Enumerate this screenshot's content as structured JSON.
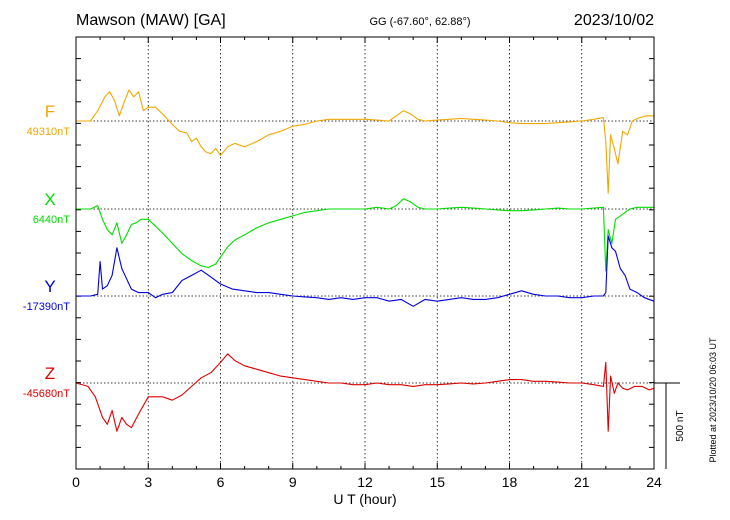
{
  "header": {
    "station": "Mawson (MAW)  [GA]",
    "coords": "GG (-67.60°,  62.88°)",
    "date": "2023/10/02"
  },
  "footer": {
    "plotted_at": "Plotted at 2023/10/20 06:03 UT"
  },
  "chart_data": {
    "type": "line",
    "xlabel": "U T (hour)",
    "xlim": [
      0,
      24
    ],
    "xticks": [
      "0",
      "3",
      "6",
      "9",
      "12",
      "15",
      "18",
      "21",
      "24"
    ],
    "grid": true,
    "scale_bar": {
      "label": "500 nT",
      "value_nT": 500
    },
    "series": [
      {
        "name": "F",
        "baseline_label": "49310nT",
        "color": "#f0a800",
        "x": [
          0,
          0.6,
          0.9,
          1.2,
          1.4,
          1.6,
          1.8,
          2.0,
          2.2,
          2.4,
          2.6,
          2.8,
          3.0,
          3.3,
          3.6,
          4.0,
          4.3,
          4.6,
          4.8,
          5.0,
          5.2,
          5.4,
          5.6,
          5.8,
          6.0,
          6.3,
          6.6,
          7.0,
          7.5,
          8.0,
          8.5,
          9.0,
          9.5,
          10,
          10.5,
          11,
          11.5,
          12,
          12.5,
          13,
          13.3,
          13.6,
          13.9,
          14.2,
          14.5,
          15,
          15.5,
          16,
          16.5,
          17,
          17.5,
          18,
          18.5,
          19,
          19.5,
          20,
          20.5,
          21,
          21.5,
          21.9,
          22.0,
          22.1,
          22.2,
          22.35,
          22.5,
          22.7,
          22.9,
          23.1,
          23.4,
          23.7,
          24
        ],
        "y": [
          0,
          0,
          60,
          140,
          170,
          120,
          30,
          110,
          180,
          140,
          170,
          60,
          80,
          80,
          40,
          -20,
          -60,
          -70,
          -120,
          -100,
          -150,
          -180,
          -190,
          -160,
          -200,
          -150,
          -130,
          -150,
          -120,
          -80,
          -60,
          -30,
          -20,
          0,
          10,
          10,
          10,
          10,
          5,
          0,
          30,
          60,
          40,
          10,
          0,
          5,
          10,
          15,
          10,
          5,
          0,
          -10,
          -15,
          -15,
          -15,
          -10,
          -5,
          0,
          10,
          20,
          -120,
          -420,
          -80,
          -160,
          -250,
          -60,
          -80,
          0,
          20,
          30,
          30
        ]
      },
      {
        "name": "X",
        "baseline_label": "6440nT",
        "color": "#00dd00",
        "x": [
          0,
          0.6,
          0.9,
          1.1,
          1.3,
          1.5,
          1.7,
          1.9,
          2.1,
          2.3,
          2.5,
          2.7,
          3.0,
          3.3,
          3.6,
          4.0,
          4.4,
          4.8,
          5.2,
          5.5,
          5.8,
          6.0,
          6.3,
          6.6,
          7.0,
          7.5,
          8.0,
          8.5,
          9.0,
          9.5,
          10,
          10.5,
          11,
          11.5,
          12,
          12.5,
          13,
          13.3,
          13.6,
          13.9,
          14.2,
          14.5,
          15,
          15.5,
          16,
          16.5,
          17,
          17.5,
          18,
          18.5,
          19,
          19.5,
          20,
          20.5,
          21,
          21.5,
          21.9,
          22.0,
          22.1,
          22.25,
          22.4,
          22.6,
          22.8,
          23,
          23.3,
          23.6,
          24
        ],
        "y": [
          0,
          0,
          20,
          -60,
          -120,
          -150,
          -80,
          -200,
          -150,
          -90,
          -80,
          -60,
          -60,
          -100,
          -140,
          -200,
          -260,
          -300,
          -330,
          -340,
          -320,
          -280,
          -220,
          -180,
          -150,
          -110,
          -80,
          -60,
          -40,
          -20,
          -10,
          0,
          0,
          0,
          0,
          10,
          0,
          20,
          60,
          40,
          10,
          0,
          0,
          5,
          10,
          5,
          0,
          -5,
          -10,
          -10,
          -5,
          0,
          5,
          0,
          0,
          5,
          10,
          -360,
          -120,
          -200,
          -60,
          -40,
          -20,
          0,
          10,
          10,
          10
        ]
      },
      {
        "name": "Y",
        "baseline_label": "-17390nT",
        "color": "#0000dd",
        "x": [
          0,
          0.6,
          0.9,
          1.0,
          1.1,
          1.3,
          1.5,
          1.7,
          1.9,
          2.1,
          2.3,
          2.6,
          3.0,
          3.3,
          3.6,
          4.0,
          4.4,
          4.8,
          5.2,
          5.6,
          6.0,
          6.5,
          7.0,
          7.5,
          8.0,
          8.5,
          9.0,
          9.5,
          10,
          10.5,
          11,
          11.5,
          12,
          12.5,
          13,
          13.5,
          14,
          14.5,
          15,
          15.5,
          16,
          16.5,
          17,
          17.5,
          18,
          18.5,
          19,
          19.5,
          20,
          20.5,
          21,
          21.5,
          21.9,
          22.0,
          22.1,
          22.25,
          22.4,
          22.6,
          22.8,
          23.0,
          23.3,
          23.6,
          24
        ],
        "y": [
          0,
          0,
          10,
          200,
          40,
          60,
          120,
          280,
          160,
          100,
          40,
          20,
          20,
          -10,
          10,
          20,
          90,
          120,
          150,
          110,
          70,
          40,
          30,
          20,
          20,
          10,
          0,
          -5,
          -10,
          -20,
          -10,
          -20,
          -10,
          -10,
          -30,
          -20,
          -60,
          -20,
          -30,
          -20,
          -10,
          -20,
          -20,
          -10,
          10,
          30,
          10,
          0,
          0,
          -10,
          -10,
          0,
          0,
          20,
          350,
          280,
          260,
          160,
          120,
          40,
          20,
          -10,
          -30
        ]
      },
      {
        "name": "Z",
        "baseline_label": "-45680nT",
        "color": "#dd0000",
        "x": [
          0,
          0.5,
          0.8,
          1.1,
          1.3,
          1.5,
          1.7,
          1.9,
          2.1,
          2.3,
          2.6,
          3.0,
          3.3,
          3.6,
          4.0,
          4.4,
          4.8,
          5.2,
          5.6,
          6.0,
          6.3,
          6.6,
          7.0,
          7.5,
          8.0,
          8.5,
          9.0,
          9.5,
          10,
          10.5,
          11,
          11.5,
          12,
          12.5,
          13,
          13.5,
          14,
          14.5,
          15,
          15.5,
          16,
          16.5,
          17,
          17.5,
          18,
          18.5,
          19,
          19.5,
          20,
          20.5,
          21,
          21.5,
          21.9,
          22.0,
          22.1,
          22.2,
          22.35,
          22.5,
          22.7,
          22.9,
          23.2,
          23.5,
          23.8,
          24
        ],
        "y": [
          0,
          -20,
          -80,
          -200,
          -240,
          -160,
          -280,
          -200,
          -240,
          -260,
          -180,
          -80,
          -80,
          -80,
          -100,
          -70,
          -20,
          30,
          60,
          120,
          170,
          130,
          100,
          80,
          60,
          40,
          30,
          20,
          10,
          0,
          0,
          -10,
          -10,
          0,
          -10,
          -10,
          -20,
          -10,
          -10,
          -5,
          0,
          -5,
          0,
          10,
          20,
          20,
          10,
          10,
          5,
          0,
          0,
          -10,
          -20,
          120,
          -280,
          40,
          -60,
          0,
          -30,
          -40,
          -20,
          -20,
          -40,
          -30
        ]
      }
    ]
  }
}
